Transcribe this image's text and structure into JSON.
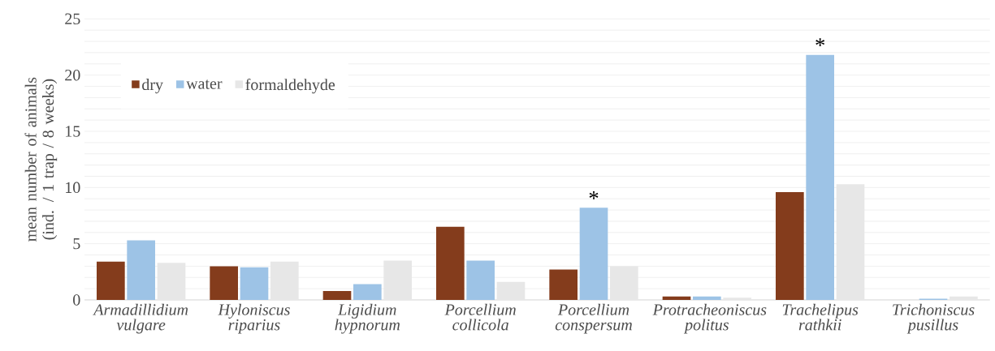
{
  "chart_data": {
    "type": "bar",
    "ylabel": "mean number of animals (ind. / 1 trap / 8 weeks)",
    "categories": [
      "Armadillidium vulgare",
      "Hyloniscus riparius",
      "Ligidium hypnorum",
      "Porcellium collicola",
      "Porcellium conspersum",
      "Protracheoniscus politus",
      "Trachelipus rathkii",
      "Trichoniscus pusillus"
    ],
    "series": [
      {
        "name": "dry",
        "color": "#843c1c",
        "values": [
          3.4,
          3.0,
          0.8,
          6.5,
          2.7,
          0.3,
          9.6,
          0
        ]
      },
      {
        "name": "water",
        "color": "#9dc3e6",
        "values": [
          5.3,
          2.9,
          1.4,
          3.5,
          8.2,
          0.3,
          21.8,
          0.1
        ]
      },
      {
        "name": "formaldehyde",
        "color": "#e7e7e7",
        "values": [
          3.3,
          3.4,
          3.5,
          1.6,
          3.0,
          0.2,
          10.3,
          0.3
        ]
      }
    ],
    "ylim": [
      0,
      25
    ],
    "yticks": [
      0,
      {
        "value": 1,
        "label": null
      },
      {
        "value": 2,
        "label": null
      },
      {
        "value": 3,
        "label": null
      },
      {
        "value": 4,
        "label": null
      },
      5,
      {
        "value": 6,
        "label": null
      },
      {
        "value": 7,
        "label": null
      },
      {
        "value": 8,
        "label": null
      },
      {
        "value": 9,
        "label": null
      },
      10,
      {
        "value": 11,
        "label": null
      },
      {
        "value": 12,
        "label": null
      },
      {
        "value": 13,
        "label": null
      },
      {
        "value": 14,
        "label": null
      },
      15,
      {
        "value": 16,
        "label": null
      },
      {
        "value": 17,
        "label": null
      },
      {
        "value": 18,
        "label": null
      },
      {
        "value": 19,
        "label": null
      },
      20,
      {
        "value": 21,
        "label": null
      },
      {
        "value": 22,
        "label": null
      },
      {
        "value": 23,
        "label": null
      },
      {
        "value": 24,
        "label": null
      },
      25
    ],
    "annotations": [
      {
        "text": "*",
        "x": "Porcellium conspersum",
        "y": 8.2
      },
      {
        "text": "*",
        "x": "Trachelipus rathkii",
        "y": 21.8
      }
    ],
    "grid": "y",
    "legend": "top left"
  }
}
